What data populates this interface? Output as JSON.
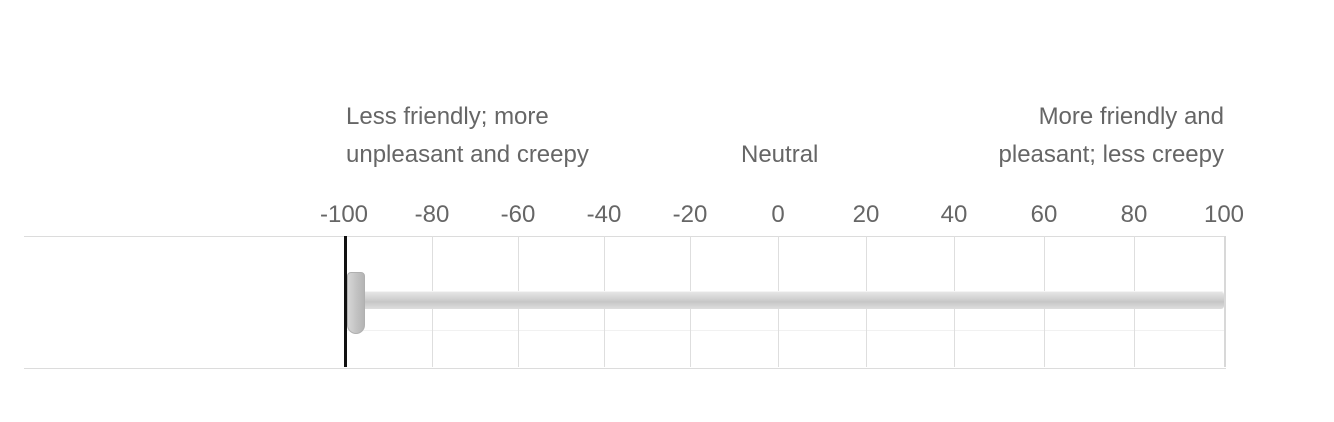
{
  "anchors": {
    "left_line1": "Less friendly; more",
    "left_line2": "unpleasant and creepy",
    "center": "Neutral",
    "right_line1": "More friendly and",
    "right_line2": "pleasant; less creepy"
  },
  "scale": {
    "min": -100,
    "max": 100,
    "ticks": [
      "-100",
      "-80",
      "-60",
      "-40",
      "-20",
      "0",
      "20",
      "40",
      "60",
      "80",
      "100"
    ]
  },
  "slider": {
    "value": -100
  }
}
